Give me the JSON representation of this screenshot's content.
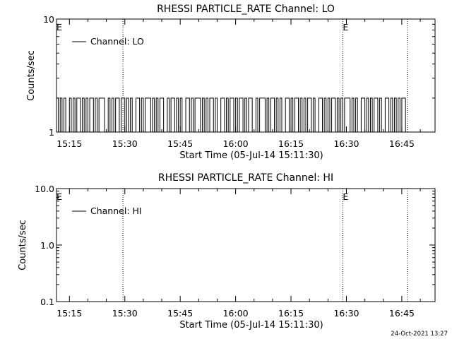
{
  "footer": {
    "date_stamp": "24-Oct-2021 13:27"
  },
  "chart_data": [
    {
      "type": "line",
      "title": "RHESSI PARTICLE_RATE Channel: LO",
      "xlabel": "Start Time (05-Jul-14 15:11:30)",
      "ylabel": "Counts/sec",
      "y_scale": "log",
      "ylim": [
        1,
        10
      ],
      "y_tick_labels": [
        "1",
        "10"
      ],
      "x_range_min": [
        "15:11:30",
        "16:54:00"
      ],
      "x_tick_labels": [
        "15:15",
        "15:30",
        "15:45",
        "16:00",
        "16:15",
        "16:30",
        "16:45"
      ],
      "legend": {
        "position": "top-left",
        "entries": [
          "Channel: LO"
        ]
      },
      "grid": false,
      "event_markers": [
        {
          "time": "15:11:30",
          "label": "E"
        },
        {
          "time": "15:29:30",
          "label": ""
        },
        {
          "time": "16:29:00",
          "label": "E"
        },
        {
          "time": "16:46:30",
          "label": ""
        }
      ],
      "series": [
        {
          "name": "Channel: LO",
          "x_start": "15:11:30",
          "x_end": "16:46:30",
          "levels": [
            1,
            2
          ],
          "pattern": "alternates between 1 and 2 counts/sec throughout",
          "values": [
            2,
            1,
            2,
            1,
            2,
            1,
            1,
            2,
            1,
            2,
            1,
            2,
            2,
            1,
            2,
            1,
            2,
            1,
            2,
            2,
            1,
            2,
            1,
            2,
            2,
            2,
            1,
            1,
            2,
            1,
            2,
            1,
            2,
            2,
            1,
            2,
            2,
            1,
            2,
            1,
            2,
            1,
            1,
            2,
            2,
            1,
            2,
            1,
            2,
            2,
            2,
            1,
            2,
            1,
            2,
            1,
            2,
            2,
            1,
            1,
            2,
            1,
            2,
            2,
            1,
            2,
            1,
            2,
            1,
            1,
            2,
            2,
            1,
            2,
            1,
            2,
            2,
            2,
            1,
            2,
            1,
            2,
            1,
            2,
            2,
            1,
            2,
            1,
            1,
            2,
            2,
            1,
            2,
            1,
            2,
            2,
            1,
            2,
            1,
            2,
            2,
            1,
            2,
            1,
            2,
            2,
            1,
            1,
            2,
            1,
            2,
            2,
            2,
            1,
            2,
            1,
            2,
            2,
            1,
            2,
            1,
            2,
            1,
            1,
            2,
            2,
            1,
            2,
            1,
            2,
            2,
            1,
            2,
            1,
            2,
            1,
            2,
            2,
            1,
            2,
            1,
            1,
            2,
            2,
            1,
            2,
            1,
            2,
            1,
            2,
            2,
            1,
            2,
            1,
            2,
            1,
            2,
            2,
            2,
            1,
            2,
            1,
            2,
            1,
            1,
            2,
            2,
            1,
            2,
            1,
            2,
            1,
            2,
            2,
            1,
            2,
            1,
            1,
            2,
            2,
            1,
            2,
            1,
            2,
            1,
            2,
            1,
            2,
            2,
            1
          ]
        }
      ]
    },
    {
      "type": "line",
      "title": "RHESSI PARTICLE_RATE Channel: HI",
      "xlabel": "Start Time (05-Jul-14 15:11:30)",
      "ylabel": "Counts/sec",
      "y_scale": "log",
      "ylim": [
        0.1,
        10
      ],
      "y_tick_labels": [
        "0.1",
        "1.0",
        "10.0"
      ],
      "x_range_min": [
        "15:11:30",
        "16:54:00"
      ],
      "x_tick_labels": [
        "15:15",
        "15:30",
        "15:45",
        "16:00",
        "16:15",
        "16:30",
        "16:45"
      ],
      "legend": {
        "position": "top-left",
        "entries": [
          "Channel: HI"
        ]
      },
      "grid": false,
      "event_markers": [
        {
          "time": "15:11:30",
          "label": "E"
        },
        {
          "time": "15:29:30",
          "label": ""
        },
        {
          "time": "16:29:00",
          "label": "E"
        },
        {
          "time": "16:46:30",
          "label": ""
        }
      ],
      "series": [
        {
          "name": "Channel: HI",
          "values": []
        }
      ]
    }
  ]
}
